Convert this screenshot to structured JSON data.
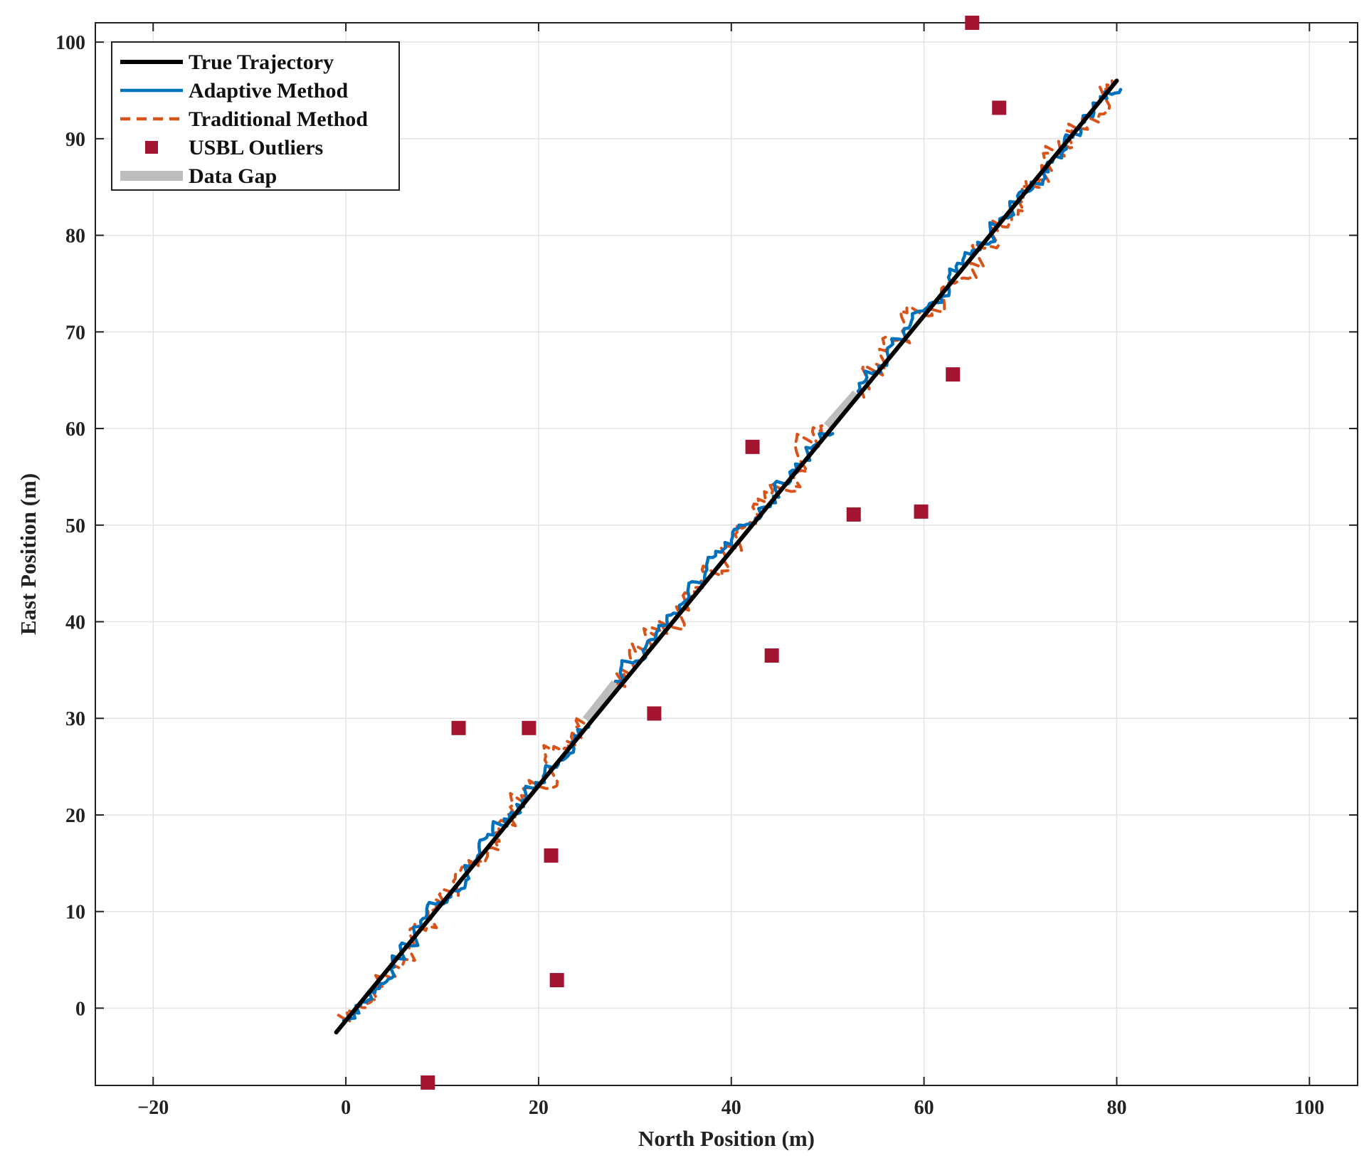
{
  "chart_data": {
    "type": "line",
    "title": "",
    "xlabel": "North Position (m)",
    "ylabel": "East Position (m)",
    "xlim": [
      -26,
      105
    ],
    "ylim": [
      -8,
      102
    ],
    "xticks": [
      -20,
      0,
      20,
      40,
      60,
      80,
      100
    ],
    "yticks": [
      0,
      10,
      20,
      30,
      40,
      50,
      60,
      70,
      80,
      90,
      100
    ],
    "grid": true,
    "legend_position": "top-left",
    "series": [
      {
        "name": "True Trajectory",
        "kind": "line",
        "color": "#000000",
        "x": [
          -1,
          80
        ],
        "y": [
          -2.5,
          96
        ]
      },
      {
        "name": "Adaptive Method",
        "kind": "line",
        "color": "#0072BD",
        "noise": 0.6,
        "x": [
          0,
          24.8,
          28,
          50,
          53,
          80
        ],
        "y": [
          -1.5,
          29.5,
          33.8,
          60,
          64,
          95.5
        ],
        "segments": [
          [
            0,
            1
          ],
          [
            2,
            3
          ],
          [
            4,
            5
          ]
        ]
      },
      {
        "name": "Traditional Method",
        "kind": "dashed-line",
        "color": "#D95319",
        "noise": 1.1,
        "x": [
          0,
          24.8,
          28,
          50,
          53,
          80
        ],
        "y": [
          -1.5,
          29.5,
          33.8,
          60,
          64,
          95.5
        ],
        "segments": [
          [
            0,
            1
          ],
          [
            2,
            3
          ],
          [
            4,
            5
          ]
        ]
      },
      {
        "name": "USBL Outliers",
        "kind": "scatter",
        "color": "#A2142F",
        "marker": "square",
        "points": [
          [
            65,
            102
          ],
          [
            67.8,
            93.2
          ],
          [
            63,
            65.6
          ],
          [
            42.2,
            58.1
          ],
          [
            52.7,
            51.1
          ],
          [
            59.7,
            51.4
          ],
          [
            44.2,
            36.5
          ],
          [
            32,
            30.5
          ],
          [
            11.7,
            29
          ],
          [
            19,
            29
          ],
          [
            21.3,
            15.8
          ],
          [
            21.9,
            2.9
          ],
          [
            8.5,
            -7.7
          ]
        ]
      },
      {
        "name": "Data Gap",
        "kind": "band",
        "color": "#BDBDBD",
        "segments": [
          [
            [
              25,
              29.8
            ],
            [
              28,
              33.6
            ]
          ],
          [
            [
              50,
              60.2
            ],
            [
              53,
              63.6
            ]
          ]
        ]
      }
    ]
  }
}
